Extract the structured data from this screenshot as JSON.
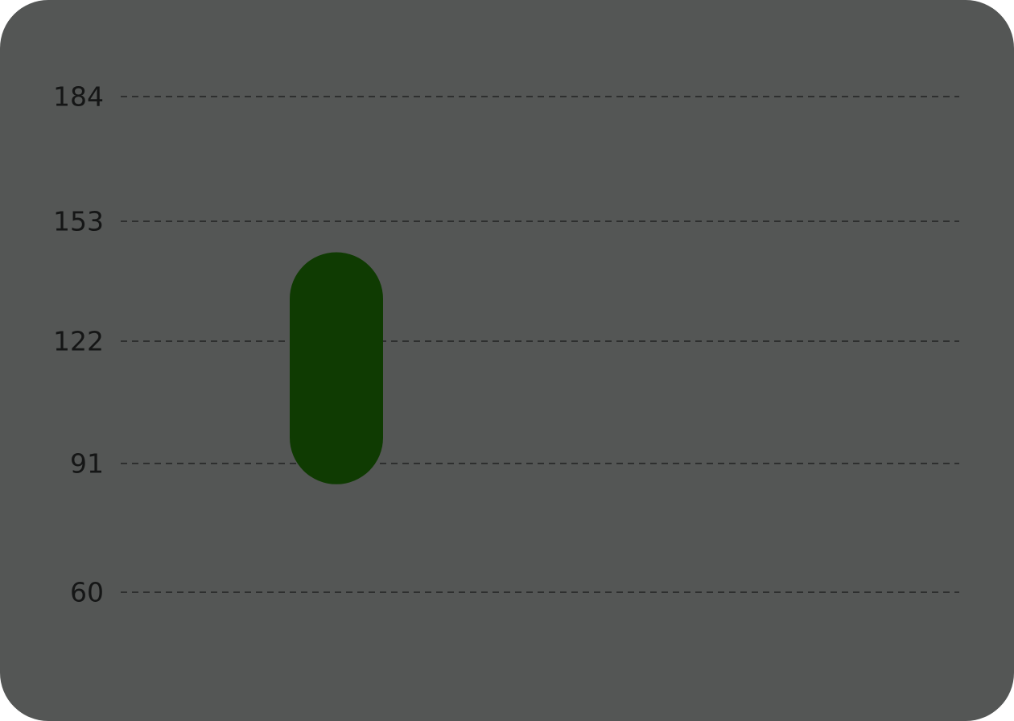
{
  "chart_data": {
    "type": "bar",
    "title": "",
    "xlabel": "",
    "ylabel": "",
    "categories": [
      ""
    ],
    "series": [
      {
        "values": [
          [
            86,
            145
          ]
        ]
      }
    ],
    "yticks": [
      "184",
      "153",
      "122",
      "91",
      "60"
    ],
    "ytick_values": [
      184,
      153,
      122,
      91,
      60
    ],
    "grid": true,
    "legend": "none"
  },
  "colors": {
    "background": "#545655",
    "bar": "#0f3b02",
    "grid": "#2e2f2f",
    "tick_text": "#151616"
  }
}
